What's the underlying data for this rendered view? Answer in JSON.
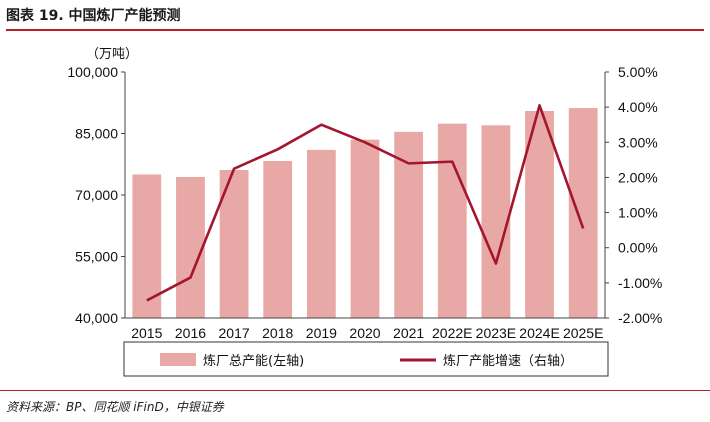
{
  "figure": {
    "title": "图表 19. 中国炼厂产能预测",
    "source": "资料来源：BP、同花顺 iFinD，中银证券",
    "colors": {
      "bar": "#e8a8a6",
      "line": "#a3162e",
      "rule": "#b22222",
      "axis": "#444444"
    }
  },
  "chart_data": {
    "type": "bar",
    "categories": [
      "2015",
      "2016",
      "2017",
      "2018",
      "2019",
      "2020",
      "2021",
      "2022E",
      "2023E",
      "2024E",
      "2025E"
    ],
    "left_unit": "（万吨）",
    "left_axis": {
      "ticks": [
        40000,
        55000,
        70000,
        85000,
        100000
      ],
      "tick_labels": [
        "40,000",
        "55,000",
        "70,000",
        "85,000",
        "100,000"
      ],
      "range": [
        40000,
        100000
      ]
    },
    "right_axis": {
      "ticks": [
        -2,
        -1,
        0,
        1,
        2,
        3,
        4,
        5
      ],
      "tick_labels": [
        "-2.00%",
        "-1.00%",
        "0.00%",
        "1.00%",
        "2.00%",
        "3.00%",
        "4.00%",
        "5.00%"
      ],
      "range": [
        -2,
        5
      ]
    },
    "series": [
      {
        "name": "炼厂总产能(左轴)",
        "type": "bar",
        "axis": "left",
        "values": [
          75000,
          74400,
          76100,
          78300,
          81000,
          83500,
          85400,
          87400,
          87000,
          90500,
          91200
        ]
      },
      {
        "name": "炼厂产能增速（右轴）",
        "type": "line",
        "axis": "right",
        "values": [
          -1.5,
          -0.85,
          2.25,
          2.8,
          3.5,
          3.0,
          2.4,
          2.45,
          -0.45,
          4.05,
          0.55
        ]
      }
    ]
  }
}
